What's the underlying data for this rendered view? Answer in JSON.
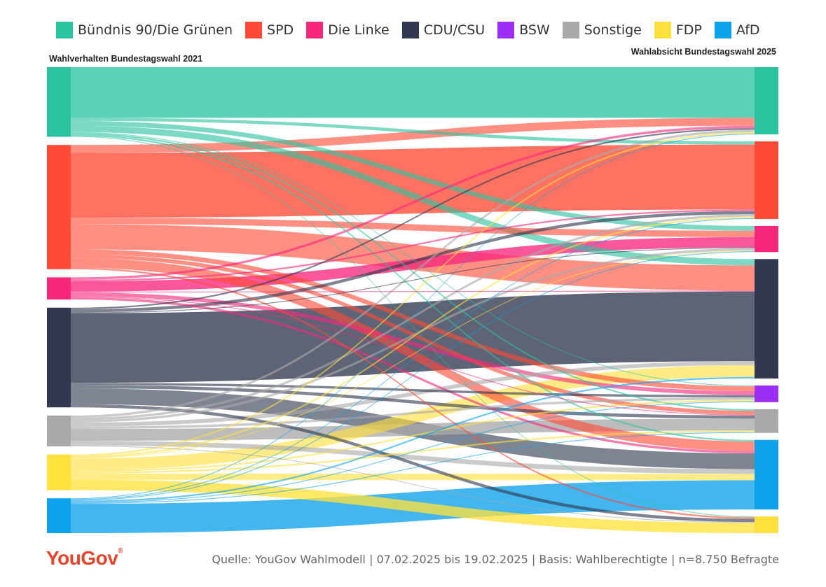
{
  "chart_data": {
    "type": "sankey",
    "title": "",
    "left_label": "Wahlverhalten Bundestagswahl 2021",
    "right_label": "Wahlabsicht Bundestagswahl 2025",
    "parties": [
      {
        "name": "Bündnis 90/Die Grünen",
        "color": "#2cc4a0"
      },
      {
        "name": "SPD",
        "color": "#ff4a36"
      },
      {
        "name": "Die Linke",
        "color": "#f7287c"
      },
      {
        "name": "CDU/CSU",
        "color": "#31384f"
      },
      {
        "name": "BSW",
        "color": "#9d2ff5"
      },
      {
        "name": "Sonstige",
        "color": "#a9a9a9"
      },
      {
        "name": "FDP",
        "color": "#ffe03c"
      },
      {
        "name": "AfD",
        "color": "#0ea2ea"
      }
    ],
    "left_order": [
      "Bündnis 90/Die Grünen",
      "SPD",
      "Die Linke",
      "CDU/CSU",
      "Sonstige",
      "FDP",
      "AfD"
    ],
    "right_order": [
      "Bündnis 90/Die Grünen",
      "SPD",
      "Die Linke",
      "CDU/CSU",
      "BSW",
      "Sonstige",
      "AfD",
      "FDP"
    ],
    "flows": [
      {
        "source": "Bündnis 90/Die Grünen",
        "target": "Bündnis 90/Die Grünen",
        "value": 64
      },
      {
        "source": "Bündnis 90/Die Grünen",
        "target": "SPD",
        "value": 4
      },
      {
        "source": "Bündnis 90/Die Grünen",
        "target": "Die Linke",
        "value": 6
      },
      {
        "source": "Bündnis 90/Die Grünen",
        "target": "CDU/CSU",
        "value": 8
      },
      {
        "source": "Bündnis 90/Die Grünen",
        "target": "BSW",
        "value": 1
      },
      {
        "source": "Bündnis 90/Die Grünen",
        "target": "Sonstige",
        "value": 2
      },
      {
        "source": "Bündnis 90/Die Grünen",
        "target": "AfD",
        "value": 2
      },
      {
        "source": "Bündnis 90/Die Grünen",
        "target": "FDP",
        "value": 1
      },
      {
        "source": "SPD",
        "target": "Bündnis 90/Die Grünen",
        "value": 10
      },
      {
        "source": "SPD",
        "target": "SPD",
        "value": 82
      },
      {
        "source": "SPD",
        "target": "Die Linke",
        "value": 8
      },
      {
        "source": "SPD",
        "target": "CDU/CSU",
        "value": 32
      },
      {
        "source": "SPD",
        "target": "BSW",
        "value": 6
      },
      {
        "source": "SPD",
        "target": "Sonstige",
        "value": 5
      },
      {
        "source": "SPD",
        "target": "AfD",
        "value": 12
      },
      {
        "source": "SPD",
        "target": "FDP",
        "value": 2
      },
      {
        "source": "Die Linke",
        "target": "Bündnis 90/Die Grünen",
        "value": 3
      },
      {
        "source": "Die Linke",
        "target": "SPD",
        "value": 2
      },
      {
        "source": "Die Linke",
        "target": "Die Linke",
        "value": 13
      },
      {
        "source": "Die Linke",
        "target": "CDU/CSU",
        "value": 1
      },
      {
        "source": "Die Linke",
        "target": "BSW",
        "value": 5
      },
      {
        "source": "Die Linke",
        "target": "Sonstige",
        "value": 1
      },
      {
        "source": "Die Linke",
        "target": "AfD",
        "value": 3
      },
      {
        "source": "CDU/CSU",
        "target": "Bündnis 90/Die Grünen",
        "value": 2
      },
      {
        "source": "CDU/CSU",
        "target": "SPD",
        "value": 4
      },
      {
        "source": "CDU/CSU",
        "target": "Die Linke",
        "value": 1
      },
      {
        "source": "CDU/CSU",
        "target": "CDU/CSU",
        "value": 88
      },
      {
        "source": "CDU/CSU",
        "target": "BSW",
        "value": 3
      },
      {
        "source": "CDU/CSU",
        "target": "Sonstige",
        "value": 4
      },
      {
        "source": "CDU/CSU",
        "target": "AfD",
        "value": 20
      },
      {
        "source": "CDU/CSU",
        "target": "FDP",
        "value": 4
      },
      {
        "source": "Sonstige",
        "target": "Bündnis 90/Die Grünen",
        "value": 3
      },
      {
        "source": "Sonstige",
        "target": "SPD",
        "value": 3
      },
      {
        "source": "Sonstige",
        "target": "Die Linke",
        "value": 3
      },
      {
        "source": "Sonstige",
        "target": "CDU/CSU",
        "value": 5
      },
      {
        "source": "Sonstige",
        "target": "BSW",
        "value": 3
      },
      {
        "source": "Sonstige",
        "target": "Sonstige",
        "value": 15
      },
      {
        "source": "Sonstige",
        "target": "AfD",
        "value": 6
      },
      {
        "source": "Sonstige",
        "target": "FDP",
        "value": 1
      },
      {
        "source": "FDP",
        "target": "Bündnis 90/Die Grünen",
        "value": 2
      },
      {
        "source": "FDP",
        "target": "SPD",
        "value": 2
      },
      {
        "source": "FDP",
        "target": "Die Linke",
        "value": 1
      },
      {
        "source": "FDP",
        "target": "CDU/CSU",
        "value": 15
      },
      {
        "source": "FDP",
        "target": "BSW",
        "value": 2
      },
      {
        "source": "FDP",
        "target": "Sonstige",
        "value": 2
      },
      {
        "source": "FDP",
        "target": "AfD",
        "value": 8
      },
      {
        "source": "FDP",
        "target": "FDP",
        "value": 13
      },
      {
        "source": "AfD",
        "target": "Bündnis 90/Die Grünen",
        "value": 1
      },
      {
        "source": "AfD",
        "target": "SPD",
        "value": 1
      },
      {
        "source": "AfD",
        "target": "Die Linke",
        "value": 1
      },
      {
        "source": "AfD",
        "target": "CDU/CSU",
        "value": 2
      },
      {
        "source": "AfD",
        "target": "BSW",
        "value": 1
      },
      {
        "source": "AfD",
        "target": "Sonstige",
        "value": 1
      },
      {
        "source": "AfD",
        "target": "AfD",
        "value": 37
      }
    ]
  },
  "footer": {
    "brand": "YouGov",
    "source": "Quelle: YouGov Wahlmodell | 07.02.2025 bis 19.02.2025 | Basis: Wahlberechtigte | n=8.750 Befragte"
  }
}
